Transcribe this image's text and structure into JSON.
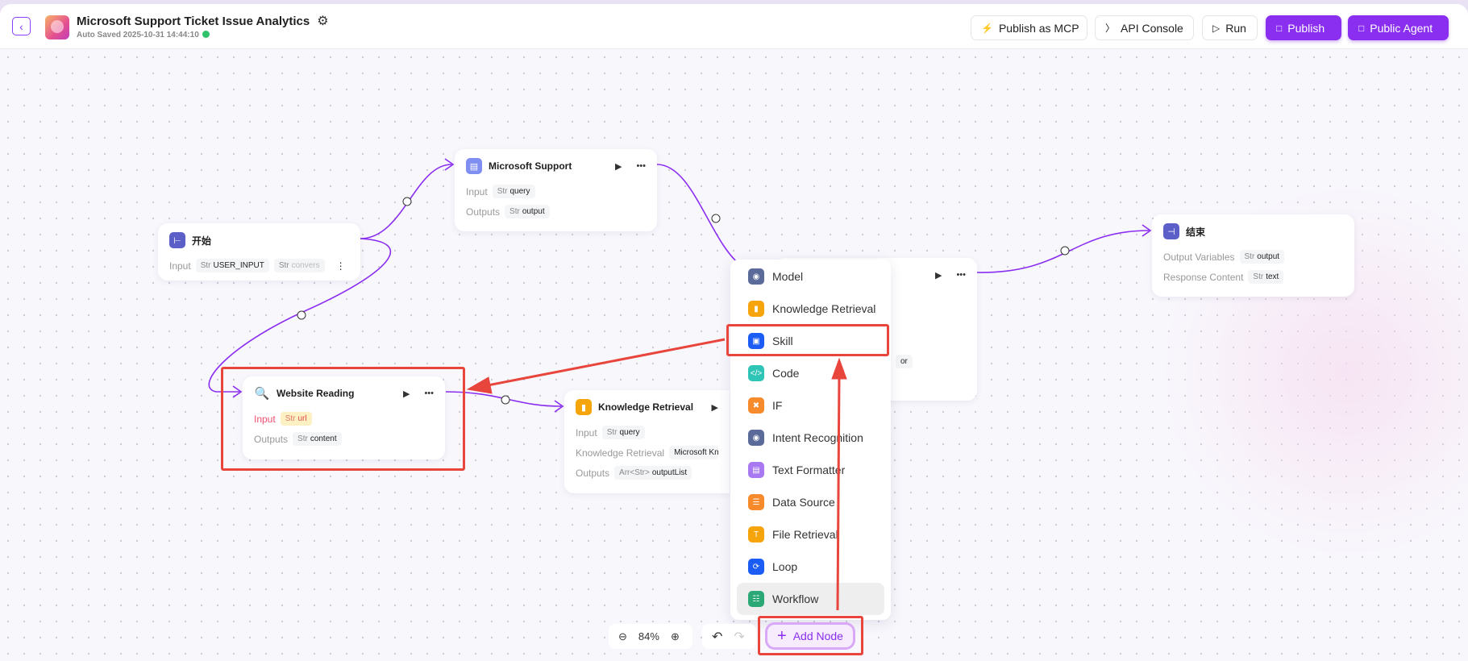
{
  "header": {
    "title": "Microsoft Support Ticket Issue Analytics",
    "auto_saved": "Auto Saved",
    "saved_time": "2025-10-31 14:44:10",
    "buttons": [
      {
        "label": "Publish as MCP",
        "icon": "plug-icon"
      },
      {
        "label": "API Console",
        "icon": "terminal-icon"
      },
      {
        "label": "Run",
        "icon": "play-icon"
      },
      {
        "label": "Publish",
        "icon": "save-icon"
      },
      {
        "label": "Public Agent",
        "icon": "save-icon"
      }
    ]
  },
  "nodes": {
    "start": {
      "title": "开始",
      "input_label": "Input",
      "inputs": [
        {
          "type": "Str",
          "name": "USER_INPUT"
        },
        {
          "type": "Str",
          "name": "convers"
        }
      ]
    },
    "ms_support": {
      "title": "Microsoft Support",
      "input_label": "Input",
      "input": {
        "type": "Str",
        "name": "query"
      },
      "outputs_label": "Outputs",
      "output": {
        "type": "Str",
        "name": "output"
      }
    },
    "hidden": {
      "partial_tag": "or"
    },
    "end": {
      "title": "结束",
      "output_vars_label": "Output Variables",
      "output_var": {
        "type": "Str",
        "name": "output"
      },
      "response_label": "Response Content",
      "response": {
        "type": "Str",
        "name": "text"
      }
    },
    "website": {
      "title": "Website Reading",
      "input_label": "Input",
      "input": {
        "type": "Str",
        "name": "url"
      },
      "outputs_label": "Outputs",
      "output": {
        "type": "Str",
        "name": "content"
      }
    },
    "kr": {
      "title": "Knowledge Retrieval",
      "input_label": "Input",
      "input": {
        "type": "Str",
        "name": "query"
      },
      "kr_label": "Knowledge Retrieval",
      "kr_value": "Microsoft Kno",
      "outputs_label": "Outputs",
      "output": {
        "type": "Arr<Str>",
        "name": "outputList"
      }
    }
  },
  "menu": {
    "items": [
      {
        "label": "Model",
        "color": "#5b6b99"
      },
      {
        "label": "Knowledge Retrieval",
        "color": "#f5a50b"
      },
      {
        "label": "Skill",
        "color": "#1b5cf5"
      },
      {
        "label": "Code",
        "color": "#2ec4b6"
      },
      {
        "label": "IF",
        "color": "#f78a2a"
      },
      {
        "label": "Intent Recognition",
        "color": "#5b6b99"
      },
      {
        "label": "Text Formatter",
        "color": "#a879f0"
      },
      {
        "label": "Data Source",
        "color": "#f78a2a"
      },
      {
        "label": "File Retrieval",
        "color": "#f5a50b"
      },
      {
        "label": "Loop",
        "color": "#1b5cf5"
      },
      {
        "label": "Workflow",
        "color": "#2aa876"
      }
    ],
    "selected": "Workflow"
  },
  "toolbar": {
    "zoom": "84%",
    "add_node": "Add Node"
  },
  "colors": {
    "accent": "#8a2ef0",
    "edge": "#8a2ef0",
    "annotation": "#e8453c"
  }
}
